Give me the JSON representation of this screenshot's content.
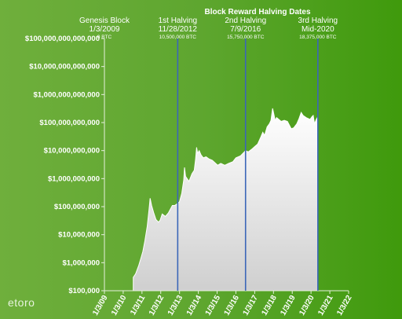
{
  "logo": "etoro",
  "chart_data": {
    "type": "area",
    "title": "Block Reward Halving Dates",
    "xlabel": "",
    "ylabel": "",
    "y_scale": "log",
    "ylim": [
      100000,
      100000000000000
    ],
    "y_ticks": [
      {
        "value": 100000,
        "label": "$100,000"
      },
      {
        "value": 1000000,
        "label": "$1,000,000"
      },
      {
        "value": 10000000,
        "label": "$10,000,000"
      },
      {
        "value": 100000000,
        "label": "$100,000,000"
      },
      {
        "value": 1000000000,
        "label": "$1,000,000,000"
      },
      {
        "value": 10000000000,
        "label": "$10,000,000,000"
      },
      {
        "value": 100000000000,
        "label": "$100,000,000,000"
      },
      {
        "value": 1000000000000,
        "label": "$1,000,000,000,000"
      },
      {
        "value": 10000000000000,
        "label": "$10,000,000,000,000"
      },
      {
        "value": 100000000000000,
        "label": "$100,000,000,000,000"
      }
    ],
    "xlim": [
      "2009-01-03",
      "2022-01-03"
    ],
    "x_ticks": [
      {
        "value": "2009-01-03",
        "label": "1/3/09"
      },
      {
        "value": "2010-01-03",
        "label": "1/3/10"
      },
      {
        "value": "2011-01-03",
        "label": "1/3/11"
      },
      {
        "value": "2012-01-03",
        "label": "1/3/12"
      },
      {
        "value": "2013-01-03",
        "label": "1/3/13"
      },
      {
        "value": "2014-01-03",
        "label": "1/3/14"
      },
      {
        "value": "2015-01-03",
        "label": "1/3/15"
      },
      {
        "value": "2016-01-03",
        "label": "1/3/16"
      },
      {
        "value": "2017-01-03",
        "label": "1/3/17"
      },
      {
        "value": "2018-01-03",
        "label": "1/3/18"
      },
      {
        "value": "2019-01-03",
        "label": "1/3/19"
      },
      {
        "value": "2020-01-03",
        "label": "1/3/20"
      },
      {
        "value": "2021-01-03",
        "label": "1/3/21"
      },
      {
        "value": "2022-01-03",
        "label": "1/3/22"
      }
    ],
    "annotations": [
      {
        "date": "2009-01-03",
        "line": false,
        "label": "Genesis Block",
        "date_label": "1/3/2009",
        "supply": "0 BTC"
      },
      {
        "date": "2012-11-28",
        "line": true,
        "label": "1st Halving",
        "date_label": "11/28/2012",
        "supply": "10,500,000 BTC"
      },
      {
        "date": "2016-07-09",
        "line": true,
        "label": "2nd Halving",
        "date_label": "7/9/2016",
        "supply": "15,750,000 BTC"
      },
      {
        "date": "2020-05-15",
        "line": true,
        "label": "3rd Halving",
        "date_label": "Mid-2020",
        "supply": "18,375,000 BTC"
      }
    ],
    "series": [
      {
        "x": [
          "2010-07-18",
          "2010-09-01",
          "2010-11-01",
          "2010-12-15",
          "2011-01-20",
          "2011-03-01",
          "2011-04-15",
          "2011-05-20",
          "2011-06-10",
          "2011-07-10",
          "2011-08-20",
          "2011-10-01",
          "2011-11-20",
          "2011-12-20",
          "2012-02-01",
          "2012-04-01",
          "2012-06-01",
          "2012-08-15",
          "2012-10-01",
          "2012-11-28",
          "2013-01-01",
          "2013-02-15",
          "2013-03-25",
          "2013-04-09",
          "2013-05-01",
          "2013-07-05",
          "2013-09-01",
          "2013-10-15",
          "2013-11-10",
          "2013-11-30",
          "2013-12-20",
          "2014-01-20",
          "2014-02-25",
          "2014-04-10",
          "2014-06-01",
          "2014-08-01",
          "2014-10-01",
          "2015-01-14",
          "2015-03-15",
          "2015-06-01",
          "2015-08-15",
          "2015-11-04",
          "2016-01-03",
          "2016-04-01",
          "2016-06-15",
          "2016-07-09",
          "2016-09-01",
          "2016-11-01",
          "2017-01-05",
          "2017-03-01",
          "2017-05-01",
          "2017-06-10",
          "2017-07-15",
          "2017-09-01",
          "2017-10-15",
          "2017-11-15",
          "2017-12-17",
          "2018-01-10",
          "2018-02-06",
          "2018-03-05",
          "2018-04-15",
          "2018-06-01",
          "2018-08-01",
          "2018-10-01",
          "2018-11-25",
          "2018-12-15",
          "2019-02-01",
          "2019-04-01",
          "2019-05-15",
          "2019-06-26",
          "2019-08-01",
          "2019-10-01",
          "2019-12-15",
          "2020-01-20",
          "2020-02-15",
          "2020-03-12",
          "2020-04-15",
          "2020-05-15"
        ],
        "values": [
          300000,
          400000,
          800000,
          1500000,
          2500000,
          6000000,
          20000000,
          80000000,
          200000000,
          110000000,
          60000000,
          35000000,
          28000000,
          32000000,
          55000000,
          45000000,
          60000000,
          110000000,
          110000000,
          130000000,
          150000000,
          300000000,
          900000000,
          2500000000,
          1200000000,
          800000000,
          1500000000,
          2000000000,
          5000000000,
          13000000000,
          8000000000,
          10000000000,
          7000000000,
          5500000000,
          6000000000,
          5000000000,
          4500000000,
          3000000000,
          3500000000,
          3000000000,
          3500000000,
          4000000000,
          5500000000,
          6500000000,
          9000000000,
          10000000000,
          9000000000,
          11000000000,
          14000000000,
          17000000000,
          30000000000,
          45000000000,
          35000000000,
          70000000000,
          90000000000,
          120000000000,
          320000000000,
          200000000000,
          120000000000,
          150000000000,
          130000000000,
          110000000000,
          120000000000,
          110000000000,
          70000000000,
          60000000000,
          65000000000,
          90000000000,
          140000000000,
          230000000000,
          180000000000,
          150000000000,
          130000000000,
          160000000000,
          180000000000,
          90000000000,
          130000000000,
          160000000000
        ]
      }
    ]
  }
}
